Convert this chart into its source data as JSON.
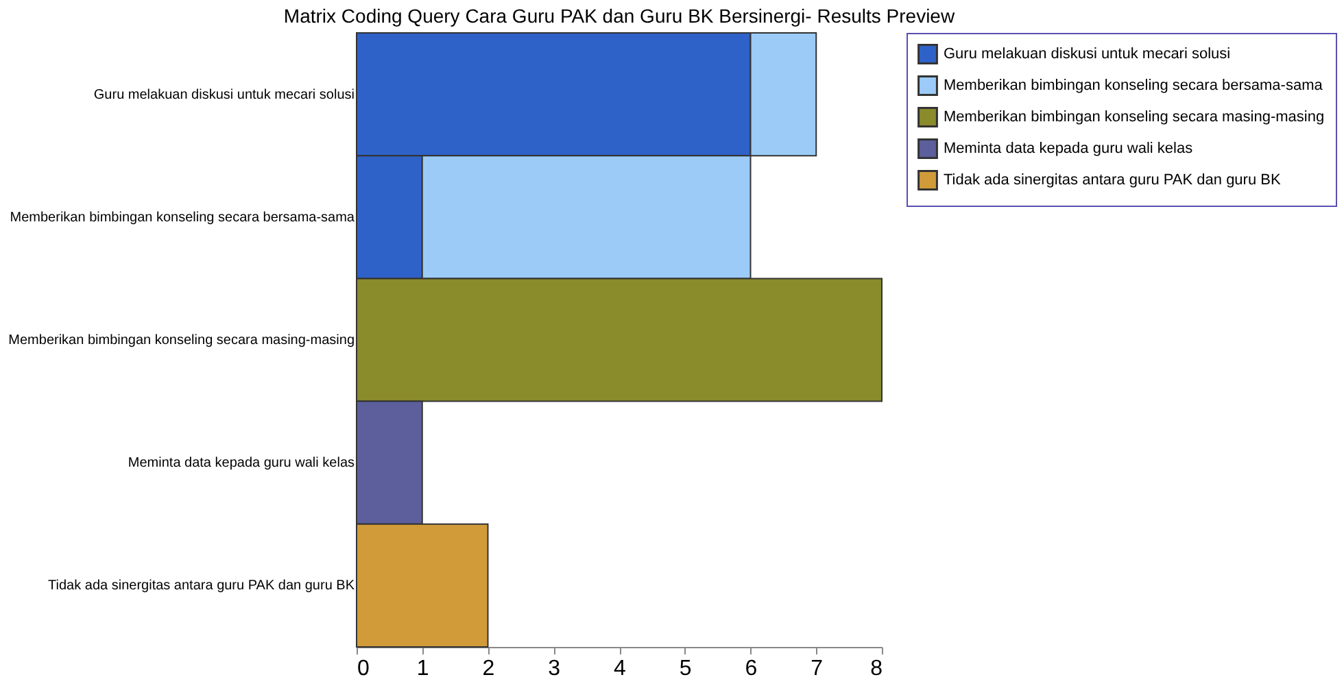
{
  "chart_data": {
    "type": "bar",
    "orientation": "horizontal",
    "stacked": true,
    "title": "Matrix Coding Query Cara Guru PAK dan Guru BK Bersinergi- Results Preview",
    "categories": [
      "Guru melakuan diskusi untuk mecari solusi",
      "Memberikan bimbingan konseling secara bersama-sama",
      "Memberikan bimbingan konseling secara masing-masing",
      "Meminta data kepada guru wali kelas",
      "Tidak ada sinergitas antara guru PAK dan guru BK"
    ],
    "series": [
      {
        "name": "Guru melakuan diskusi untuk mecari solusi",
        "color": "#2f62c9",
        "values": [
          6,
          1,
          null,
          null,
          null
        ]
      },
      {
        "name": "Memberikan bimbingan konseling secara bersama-sama",
        "color": "#9ccbf7",
        "values": [
          1,
          5,
          null,
          null,
          null
        ]
      },
      {
        "name": "Memberikan bimbingan konseling secara masing-masing",
        "color": "#8a8b2b",
        "values": [
          null,
          null,
          8,
          null,
          null
        ]
      },
      {
        "name": "Meminta data kepada guru wali kelas",
        "color": "#5c5f9c",
        "values": [
          null,
          null,
          null,
          1,
          null
        ]
      },
      {
        "name": "Tidak ada sinergitas antara guru PAK dan guru BK",
        "color": "#d19b3a",
        "values": [
          null,
          null,
          null,
          null,
          2
        ]
      }
    ],
    "xlim": [
      0,
      8
    ],
    "xticks": [
      0,
      1,
      2,
      3,
      4,
      5,
      6,
      7,
      8
    ],
    "grid": false,
    "legend": "right"
  }
}
